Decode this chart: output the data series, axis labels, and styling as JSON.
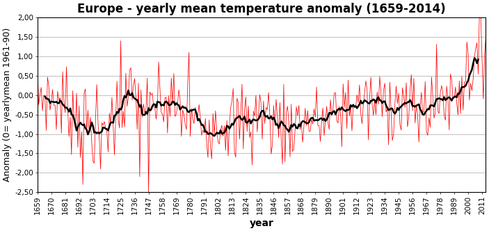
{
  "title": "Europe - yearly mean temperature anomaly (1659-2014)",
  "xlabel": "year",
  "ylabel": "Anomaly (0= yearlymean 1961-90)",
  "ylim": [
    -2.5,
    2.0
  ],
  "yticks": [
    -2.5,
    -2.0,
    -1.5,
    -1.0,
    -0.5,
    0.0,
    0.5,
    1.0,
    1.5,
    2.0
  ],
  "ytick_labels": [
    "-2,50",
    "-2,00",
    "-1,50",
    "-1,00",
    "-0,50",
    "0,00",
    "0,50",
    "1,00",
    "1,50",
    "2,00"
  ],
  "xtick_years": [
    1659,
    1670,
    1681,
    1692,
    1703,
    1714,
    1725,
    1736,
    1747,
    1758,
    1769,
    1780,
    1791,
    1802,
    1813,
    1824,
    1835,
    1846,
    1857,
    1868,
    1879,
    1890,
    1901,
    1912,
    1923,
    1934,
    1945,
    1956,
    1967,
    1978,
    1989,
    2000,
    2011
  ],
  "line_color": "#ff0000",
  "ma_color": "#000000",
  "ma_period": 12,
  "background_color": "#ffffff",
  "grid_color": "#c0c0c0",
  "title_fontsize": 12,
  "axis_label_fontsize": 9,
  "tick_fontsize": 7.5,
  "xlabel_fontsize": 10,
  "fig_width": 7.03,
  "fig_height": 3.32,
  "dpi": 100
}
